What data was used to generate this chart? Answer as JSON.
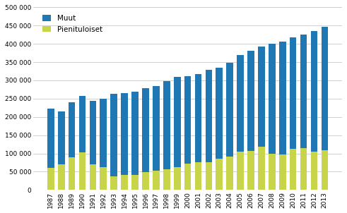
{
  "years": [
    1987,
    1988,
    1989,
    1990,
    1991,
    1992,
    1993,
    1994,
    1995,
    1996,
    1997,
    1998,
    1999,
    2000,
    2001,
    2002,
    2003,
    2004,
    2005,
    2006,
    2007,
    2008,
    2009,
    2010,
    2011,
    2012,
    2013
  ],
  "total": [
    222000,
    215000,
    240000,
    258000,
    243000,
    250000,
    263000,
    265000,
    270000,
    278000,
    285000,
    298000,
    310000,
    312000,
    318000,
    328000,
    335000,
    348000,
    370000,
    382000,
    392000,
    400000,
    407000,
    418000,
    425000,
    435000,
    447000
  ],
  "pienituloiset": [
    60000,
    70000,
    90000,
    103000,
    70000,
    62000,
    37000,
    42000,
    42000,
    48000,
    53000,
    57000,
    62000,
    72000,
    75000,
    75000,
    85000,
    92000,
    105000,
    107000,
    118000,
    100000,
    97000,
    112000,
    115000,
    105000,
    108000
  ],
  "muut_color": "#1f77b4",
  "pienituloiset_color": "#c8d44a",
  "legend_muut": "Muut",
  "legend_pienituloiset": "Pienituloiset",
  "ylim": [
    0,
    500000
  ],
  "yticks": [
    0,
    50000,
    100000,
    150000,
    200000,
    250000,
    300000,
    350000,
    400000,
    450000,
    500000
  ],
  "bg_color": "#ffffff",
  "grid_color": "#d0d0d0"
}
